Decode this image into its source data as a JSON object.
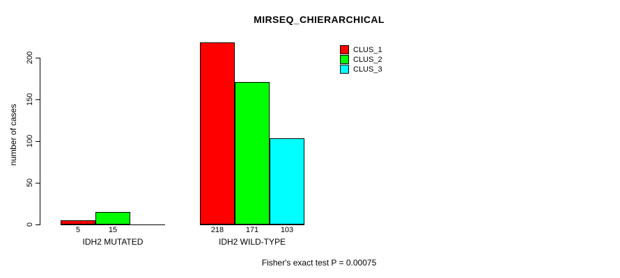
{
  "chart_data": {
    "type": "bar",
    "title": "MIRSEQ_CHIERARCHICAL",
    "xlabel": "",
    "ylabel": "number of cases",
    "categories": [
      "IDH2 MUTATED",
      "IDH2 WILD-TYPE"
    ],
    "series": [
      {
        "name": "CLUS_1",
        "color": "#ff0000",
        "values": [
          5,
          218
        ]
      },
      {
        "name": "CLUS_2",
        "color": "#00ff00",
        "values": [
          15,
          171
        ]
      },
      {
        "name": "CLUS_3",
        "color": "#00ffff",
        "values": [
          0,
          103
        ]
      }
    ],
    "bar_labels": [
      [
        "5",
        "15",
        ""
      ],
      [
        "218",
        "171",
        "103"
      ]
    ],
    "yticks": [
      "0",
      "50",
      "100",
      "150",
      "200"
    ],
    "ytick_values": [
      0,
      50,
      100,
      150,
      200
    ],
    "ylim": [
      0,
      200
    ],
    "grid": false,
    "legend_position": "top-right",
    "annotation": "Fisher's exact test P = 0.00075"
  },
  "colors": {
    "background": "#ffffff",
    "axis": "#000000",
    "text": "#000000"
  }
}
